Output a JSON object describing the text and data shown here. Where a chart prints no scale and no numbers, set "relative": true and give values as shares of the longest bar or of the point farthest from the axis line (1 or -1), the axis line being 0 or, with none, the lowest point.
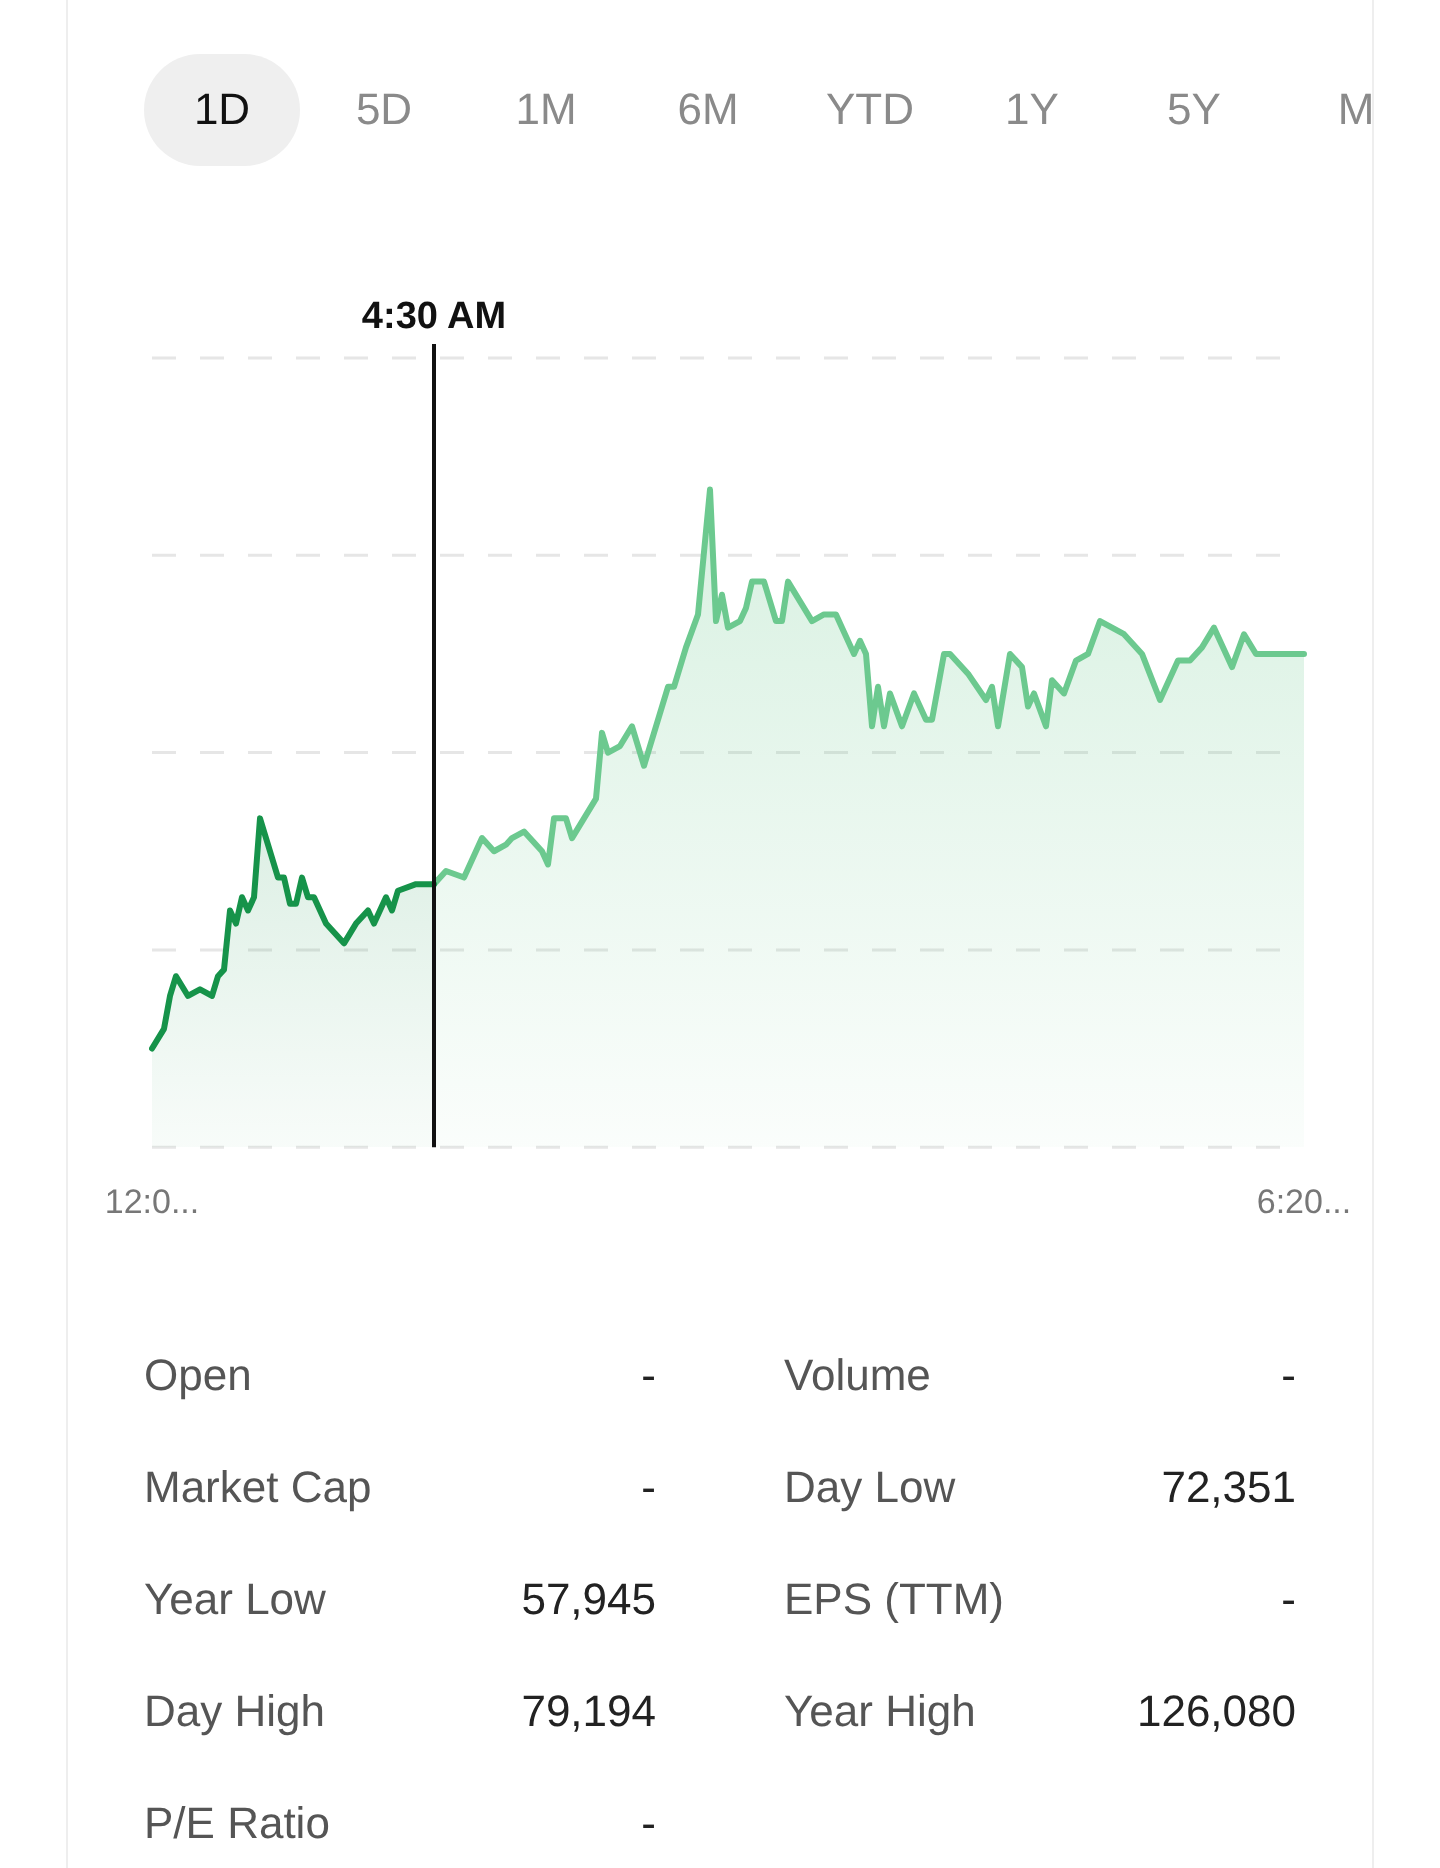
{
  "chart_data": [
    {
      "type": "other",
      "annotations": [
        "1D",
        "5D",
        "1M",
        "6M",
        "YTD",
        "1Y",
        "5Y",
        "M"
      ]
    },
    {
      "type": "area",
      "relative": true,
      "grid": "y",
      "legend": false,
      "marker": "none",
      "line_style": "solid",
      "annotations": [
        "4:30 AM"
      ],
      "categories": [
        "12:0...",
        null,
        null,
        null,
        null,
        null,
        null,
        null,
        null,
        null,
        null,
        null,
        null,
        null,
        null,
        null,
        null,
        null,
        null,
        null,
        null,
        null,
        null,
        null,
        null,
        null,
        null,
        null,
        null,
        null,
        null,
        null,
        null,
        null,
        null,
        null,
        null,
        null,
        null,
        null,
        null,
        null,
        null,
        null,
        null,
        null,
        null,
        null,
        null,
        null,
        null,
        null,
        null,
        null,
        null,
        null,
        null,
        null,
        null,
        null,
        null,
        null,
        null,
        null,
        null,
        null,
        null,
        null,
        null,
        null,
        null,
        null,
        null,
        null,
        null,
        null,
        null,
        null,
        null,
        null,
        null,
        null,
        null,
        null,
        null,
        null,
        null,
        null,
        null,
        null,
        null,
        null,
        null,
        null,
        null,
        null,
        null,
        null,
        null,
        null,
        null,
        null,
        null,
        null,
        null,
        null,
        null,
        null,
        null,
        null,
        null,
        null,
        null,
        null,
        null,
        null,
        null,
        null,
        null,
        null,
        null,
        null,
        null,
        null,
        null,
        null,
        null,
        null,
        null,
        null,
        null,
        null,
        null,
        null,
        null,
        null,
        null,
        null,
        null,
        null,
        null,
        null,
        null,
        null,
        null,
        null,
        null,
        null,
        null,
        null,
        null,
        null,
        null,
        null,
        null,
        null,
        null,
        null,
        null,
        null,
        null,
        null,
        null,
        null,
        null,
        null,
        null,
        null,
        null,
        null,
        null,
        null,
        null,
        null,
        null,
        null,
        null,
        null,
        null,
        null,
        null,
        null,
        null,
        null,
        null,
        null,
        null,
        null,
        null,
        null,
        null,
        null,
        "6:20..."
      ],
      "series": [
        {
          "color": "#16934a",
          "values": [
            0.15,
            null,
            0.18,
            0.23,
            0.26,
            null,
            0.23,
            null,
            0.24,
            null,
            0.23,
            0.26,
            0.27,
            0.36,
            0.34,
            0.38,
            0.36,
            0.38,
            0.5,
            0.47,
            null,
            0.41,
            0.41,
            0.37,
            0.37,
            0.41,
            0.38,
            0.38,
            null,
            0.34,
            null,
            null,
            0.31,
            null,
            0.34,
            null,
            0.36,
            0.34,
            null,
            0.38,
            0.36,
            0.39,
            null,
            null,
            0.4,
            null,
            null,
            0.4,
            null,
            null,
            null,
            null,
            null,
            null,
            null,
            null,
            null,
            null,
            null,
            null,
            null,
            null,
            null,
            null,
            null,
            null,
            null,
            null,
            null,
            null,
            null,
            null,
            null,
            null,
            null,
            null,
            null,
            null,
            null,
            null,
            null,
            null,
            null,
            null,
            null,
            null,
            null,
            null,
            null,
            null,
            null,
            null,
            null,
            null,
            null,
            null,
            null,
            null,
            null,
            null,
            null,
            null,
            null,
            null,
            null,
            null,
            null,
            null,
            null,
            null,
            null,
            null,
            null,
            null,
            null,
            null,
            null,
            null,
            null,
            null,
            null,
            null,
            null,
            null,
            null,
            null,
            null,
            null,
            null,
            null,
            null,
            null,
            null,
            null,
            null,
            null,
            null,
            null,
            null,
            null,
            null,
            null,
            null,
            null,
            null,
            null,
            null,
            null,
            null,
            null,
            null,
            null,
            null,
            null,
            null,
            null,
            null,
            null,
            null,
            null,
            null,
            null,
            null,
            null,
            null,
            null,
            null,
            null,
            null,
            null,
            null,
            null,
            null,
            null,
            null,
            null,
            null,
            null,
            null,
            null,
            null,
            null,
            null,
            null,
            null,
            null,
            null,
            null,
            null,
            null,
            null,
            null,
            null
          ]
        },
        {
          "color": "#6cc98f",
          "values": [
            null,
            null,
            null,
            null,
            null,
            null,
            null,
            null,
            null,
            null,
            null,
            null,
            null,
            null,
            null,
            null,
            null,
            null,
            null,
            null,
            null,
            null,
            null,
            null,
            null,
            null,
            null,
            null,
            null,
            null,
            null,
            null,
            null,
            null,
            null,
            null,
            null,
            null,
            null,
            null,
            null,
            null,
            null,
            null,
            null,
            null,
            null,
            0.4,
            null,
            0.42,
            null,
            null,
            0.41,
            null,
            null,
            0.47,
            null,
            0.45,
            null,
            0.46,
            0.47,
            null,
            0.48,
            null,
            null,
            0.45,
            0.43,
            0.5,
            null,
            0.5,
            0.47,
            null,
            0.5,
            null,
            0.53,
            0.63,
            0.6,
            null,
            0.61,
            null,
            0.64,
            null,
            0.58,
            null,
            0.64,
            null,
            0.7,
            0.7,
            null,
            0.76,
            null,
            0.81,
            null,
            1,
            0.8,
            0.84,
            0.79,
            null,
            0.8,
            0.82,
            0.86,
            null,
            0.86,
            null,
            0.8,
            0.8,
            0.86,
            null,
            0.83,
            null,
            0.8,
            null,
            0.81,
            null,
            0.81,
            0.79,
            null,
            0.75,
            0.77,
            0.75,
            0.64,
            0.7,
            0.64,
            0.69,
            null,
            0.64,
            null,
            0.69,
            null,
            0.65,
            0.65,
            null,
            0.75,
            0.75,
            null,
            null,
            0.72,
            null,
            null,
            0.68,
            0.7,
            0.64,
            null,
            0.75,
            null,
            0.73,
            0.67,
            0.69,
            null,
            0.64,
            0.71,
            null,
            0.69,
            null,
            0.74,
            null,
            0.75,
            null,
            0.8,
            null,
            0.79,
            null,
            0.78,
            null,
            null,
            0.75,
            null,
            null,
            0.68,
            null,
            null,
            0.74,
            null,
            0.74,
            null,
            0.76,
            null,
            0.79,
            null,
            null,
            0.73,
            null,
            0.78,
            null,
            0.75,
            0.75,
            null,
            0.75,
            null,
            0.75,
            null,
            0.75,
            0.75
          ]
        }
      ]
    },
    {
      "type": "other",
      "annotations": [
        "Open",
        "-",
        "Volume",
        "-",
        "Market Cap",
        "-",
        "Day Low",
        "72,351",
        "Year Low",
        "57,945",
        "EPS (TTM)",
        "-",
        "Day High",
        "79,194",
        "Year High",
        "126,080",
        "P/E Ratio",
        "-"
      ]
    }
  ]
}
